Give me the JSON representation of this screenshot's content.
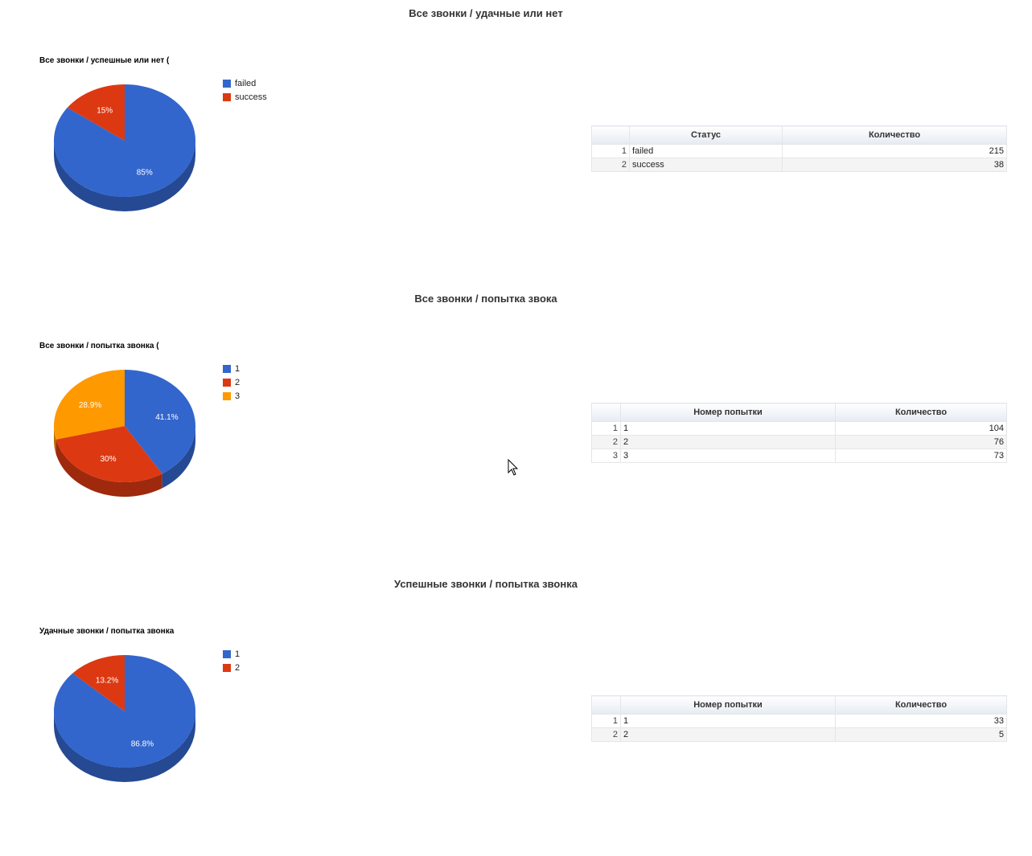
{
  "sections": [
    {
      "title": "Все звонки / удачные или нет",
      "chart_title": "Все звонки / успешные или нет (",
      "chart_data": {
        "type": "pie",
        "title": "Все звонки / успешные или нет (",
        "categories": [
          "failed",
          "success"
        ],
        "values": [
          215,
          38
        ],
        "slice_labels": [
          "85%",
          "15%"
        ],
        "colors": [
          "#3366cc",
          "#dc3912"
        ],
        "legend_position": "right",
        "is3D": true
      },
      "table": {
        "columns": [
          "Статус",
          "Количество"
        ],
        "rows": [
          {
            "index": "1",
            "label": "failed",
            "value": "215"
          },
          {
            "index": "2",
            "label": "success",
            "value": "38"
          }
        ]
      }
    },
    {
      "title": "Все звонки / попытка звока",
      "chart_title": "Все звонки / попытка звонка (",
      "chart_data": {
        "type": "pie",
        "title": "Все звонки / попытка звонка (",
        "categories": [
          "1",
          "2",
          "3"
        ],
        "values": [
          104,
          76,
          73
        ],
        "slice_labels": [
          "41.1%",
          "30%",
          "28.9%"
        ],
        "colors": [
          "#3366cc",
          "#dc3912",
          "#ff9900"
        ],
        "legend_position": "right",
        "is3D": true
      },
      "table": {
        "columns": [
          "Номер попытки",
          "Количество"
        ],
        "rows": [
          {
            "index": "1",
            "label": "1",
            "value": "104"
          },
          {
            "index": "2",
            "label": "2",
            "value": "76"
          },
          {
            "index": "3",
            "label": "3",
            "value": "73"
          }
        ]
      }
    },
    {
      "title": "Успешные звонки / попытка звонка",
      "chart_title": "Удачные звонки / попытка звонка",
      "chart_data": {
        "type": "pie",
        "title": "Удачные звонки / попытка звонка",
        "categories": [
          "1",
          "2"
        ],
        "values": [
          33,
          5
        ],
        "slice_labels": [
          "86.8%",
          "13.2%"
        ],
        "colors": [
          "#3366cc",
          "#dc3912"
        ],
        "legend_position": "right",
        "is3D": true
      },
      "table": {
        "columns": [
          "Номер попытки",
          "Количество"
        ],
        "rows": [
          {
            "index": "1",
            "label": "1",
            "value": "33"
          },
          {
            "index": "2",
            "label": "2",
            "value": "5"
          }
        ]
      }
    }
  ]
}
